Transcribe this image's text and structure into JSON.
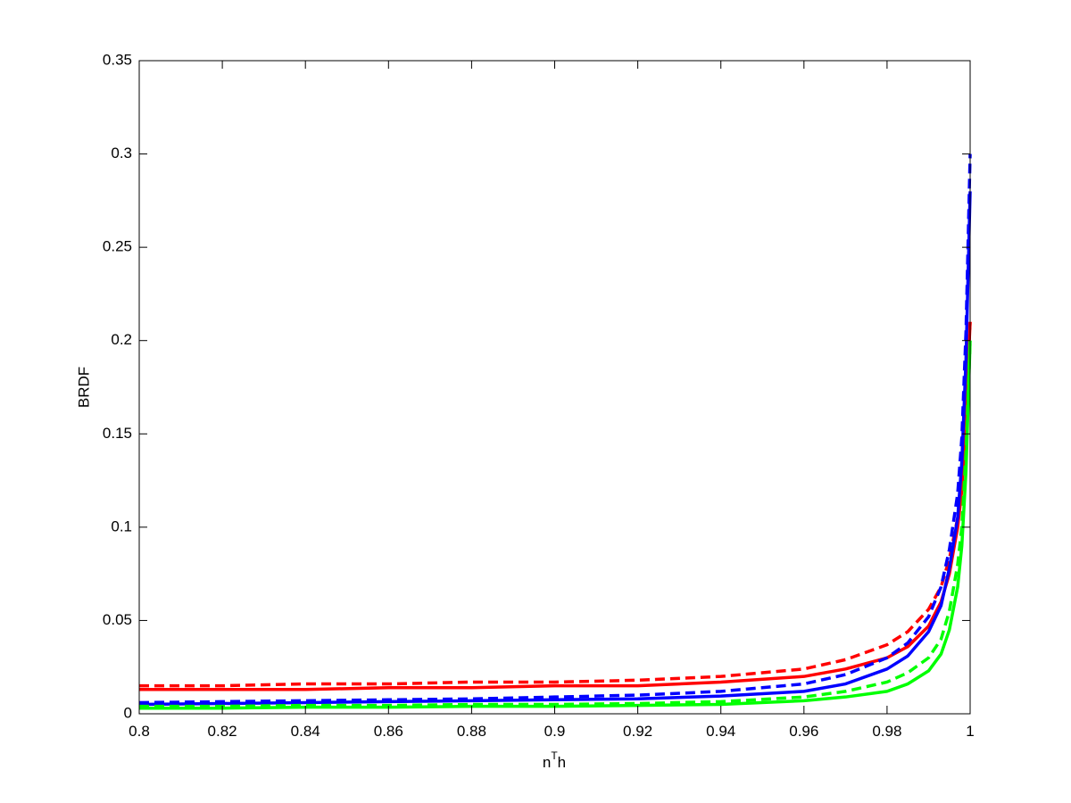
{
  "chart_data": {
    "type": "line",
    "x_label": [
      "n",
      "T",
      "h"
    ],
    "y_label": "BRDF",
    "x": [
      0.8,
      0.82,
      0.84,
      0.86,
      0.88,
      0.9,
      0.92,
      0.94,
      0.96,
      0.97,
      0.98,
      0.985,
      0.99,
      0.993,
      0.995,
      0.997,
      0.998,
      0.999,
      1.0
    ],
    "series": [
      {
        "color": "#ff0000",
        "dashed": false,
        "values": [
          0.013,
          0.013,
          0.013,
          0.014,
          0.014,
          0.015,
          0.015,
          0.017,
          0.02,
          0.024,
          0.03,
          0.036,
          0.047,
          0.06,
          0.075,
          0.1,
          0.12,
          0.16,
          0.21
        ]
      },
      {
        "color": "#ff0000",
        "dashed": true,
        "values": [
          0.015,
          0.015,
          0.016,
          0.016,
          0.017,
          0.017,
          0.018,
          0.02,
          0.024,
          0.029,
          0.037,
          0.044,
          0.056,
          0.068,
          0.083,
          0.105,
          0.125,
          0.165,
          0.21
        ]
      },
      {
        "color": "#0000ff",
        "dashed": false,
        "values": [
          0.005,
          0.0055,
          0.006,
          0.0065,
          0.007,
          0.0075,
          0.008,
          0.0095,
          0.012,
          0.016,
          0.024,
          0.031,
          0.044,
          0.058,
          0.078,
          0.105,
          0.135,
          0.19,
          0.28
        ]
      },
      {
        "color": "#0000ff",
        "dashed": true,
        "values": [
          0.006,
          0.0065,
          0.007,
          0.0075,
          0.008,
          0.009,
          0.01,
          0.012,
          0.016,
          0.021,
          0.03,
          0.038,
          0.052,
          0.068,
          0.088,
          0.118,
          0.148,
          0.205,
          0.3
        ]
      },
      {
        "color": "#00ff00",
        "dashed": false,
        "values": [
          0.003,
          0.003,
          0.0035,
          0.0035,
          0.004,
          0.004,
          0.0045,
          0.005,
          0.007,
          0.009,
          0.012,
          0.016,
          0.023,
          0.032,
          0.045,
          0.068,
          0.09,
          0.13,
          0.2
        ]
      },
      {
        "color": "#00ff00",
        "dashed": true,
        "values": [
          0.004,
          0.004,
          0.0045,
          0.0045,
          0.005,
          0.005,
          0.0055,
          0.0065,
          0.009,
          0.012,
          0.017,
          0.022,
          0.03,
          0.04,
          0.055,
          0.08,
          0.1,
          0.14,
          0.2
        ]
      }
    ],
    "xlim": [
      0.8,
      1
    ],
    "ylim": [
      0,
      0.35
    ],
    "xticks": [
      0.8,
      0.82,
      0.84,
      0.86,
      0.88,
      0.9,
      0.92,
      0.94,
      0.96,
      0.98,
      1
    ],
    "yticks": [
      0,
      0.05,
      0.1,
      0.15,
      0.2,
      0.25,
      0.3,
      0.35
    ],
    "grid": false
  }
}
